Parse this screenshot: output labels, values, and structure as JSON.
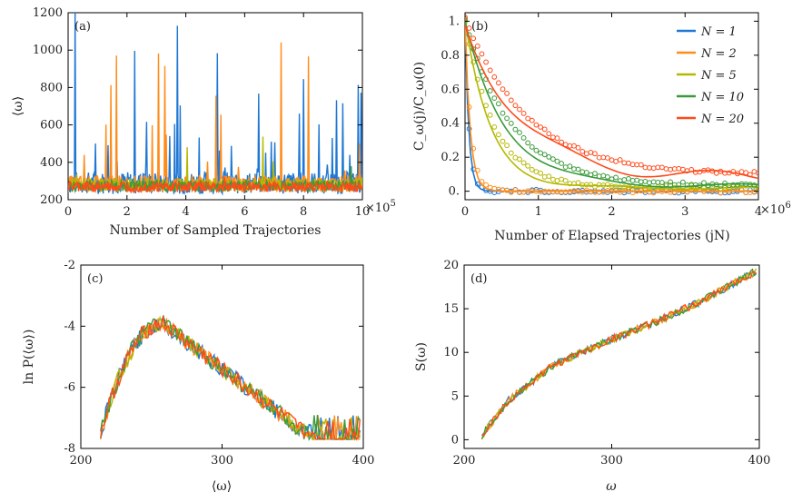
{
  "chart_data": [
    {
      "panel": "(a)",
      "type": "line",
      "xlabel": "Number of Sampled Trajectories",
      "ylabel": "⟨ω⟩",
      "xlim": [
        0,
        10
      ],
      "ylim": [
        200,
        1200
      ],
      "x_multiplier": "×10",
      "x_multiplier_exp": "5",
      "x_ticks": [
        0,
        2,
        4,
        6,
        8,
        10
      ],
      "y_ticks": [
        200,
        400,
        600,
        800,
        1000,
        1200
      ],
      "series": [
        {
          "name": "N = 1",
          "color": "#1f77d4",
          "baseline": 290,
          "spread": 60,
          "spike_prob": 0.07,
          "spike_max": 1200
        },
        {
          "name": "N = 2",
          "color": "#ff8c1a",
          "baseline": 285,
          "spread": 45,
          "spike_prob": 0.025,
          "spike_max": 1200
        },
        {
          "name": "N = 5",
          "color": "#b5b800",
          "baseline": 280,
          "spread": 35,
          "spike_prob": 0.01,
          "spike_max": 600
        },
        {
          "name": "N = 10",
          "color": "#3a9a3a",
          "baseline": 275,
          "spread": 30,
          "spike_prob": 0.006,
          "spike_max": 450
        },
        {
          "name": "N = 20",
          "color": "#ff4a1a",
          "baseline": 270,
          "spread": 28,
          "spike_prob": 0.003,
          "spike_max": 400
        }
      ]
    },
    {
      "panel": "(b)",
      "type": "line",
      "xlabel": "Number of Elapsed Trajectories (jN)",
      "ylabel": "C_ω(j)/C_ω(0)",
      "xlim": [
        0,
        4
      ],
      "ylim": [
        -0.05,
        1.05
      ],
      "x_multiplier": "×10",
      "x_multiplier_exp": "6",
      "x_ticks": [
        0,
        1,
        2,
        3,
        4
      ],
      "y_ticks": [
        0,
        0.2,
        0.4,
        0.6,
        0.8,
        1
      ],
      "y_tick_labels": [
        "0.",
        "0.2",
        "0.4",
        "0.6",
        "0.8",
        "1."
      ],
      "legend_position": "top-right",
      "series": [
        {
          "name": "N = 1",
          "color": "#1f77d4",
          "decay": 0.05,
          "tail": 0.0
        },
        {
          "name": "N = 2",
          "color": "#ff8c1a",
          "decay": 0.07,
          "tail": 0.0
        },
        {
          "name": "N = 5",
          "color": "#b5b800",
          "decay": 0.35,
          "tail": 0.02
        },
        {
          "name": "N = 10",
          "color": "#3a9a3a",
          "decay": 0.55,
          "tail": 0.03
        },
        {
          "name": "N = 20",
          "color": "#ff4a1a",
          "decay": 0.75,
          "tail": 0.08
        }
      ]
    },
    {
      "panel": "(c)",
      "type": "line",
      "xlabel": "⟨ω⟩",
      "ylabel": "ln P(⟨ω⟩)",
      "xlim": [
        200,
        400
      ],
      "ylim": [
        -8,
        -2
      ],
      "x_ticks": [
        200,
        300,
        400
      ],
      "y_ticks": [
        -8,
        -6,
        -4,
        -2
      ],
      "peak_x": 258,
      "peak_y": -3.9
    },
    {
      "panel": "(d)",
      "type": "line",
      "xlabel": "ω",
      "ylabel": "S(ω)",
      "xlim": [
        200,
        400
      ],
      "ylim": [
        -1,
        20
      ],
      "x_ticks": [
        200,
        300,
        400
      ],
      "y_ticks": [
        0,
        5,
        10,
        15,
        20
      ],
      "curve": [
        [
          210,
          0
        ],
        [
          230,
          4.5
        ],
        [
          260,
          8.5
        ],
        [
          300,
          11.5
        ],
        [
          330,
          13.5
        ],
        [
          360,
          15.8
        ],
        [
          400,
          19.5
        ]
      ]
    }
  ]
}
